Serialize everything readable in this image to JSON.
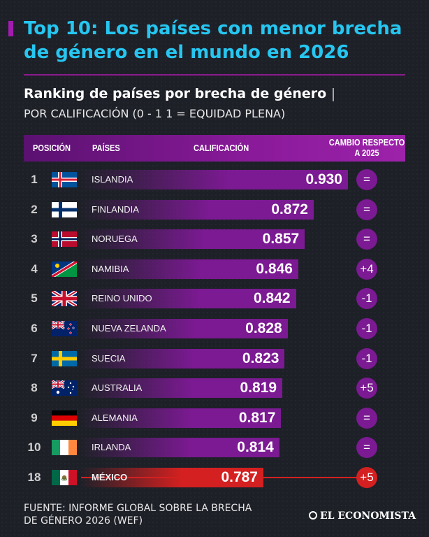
{
  "header": {
    "title": "Top 10: Los países con menor brecha de género en el mundo en 2026",
    "subtitle": "Ranking de países por brecha de género",
    "subtitle_sep": "|",
    "scale_note": "POR CALIFICACIÓN (0 - 1   1 = EQUIDAD PLENA)"
  },
  "columns": {
    "position": "POSICIÓN",
    "country": "PAÍSES",
    "score": "CALIFICACIÓN",
    "change": "CAMBIO RESPECTO A 2025"
  },
  "chart_data": {
    "type": "bar",
    "categories": [
      "ISLANDIA",
      "FINLANDIA",
      "NORUEGA",
      "NAMIBIA",
      "REINO UNIDO",
      "NUEVA ZELANDA",
      "SUECIA",
      "AUSTRALIA",
      "ALEMANIA",
      "IRLANDA",
      "MÉXICO"
    ],
    "ranks": [
      "1",
      "2",
      "3",
      "4",
      "5",
      "6",
      "7",
      "8",
      "9",
      "10",
      "18"
    ],
    "values": [
      0.93,
      0.872,
      0.857,
      0.846,
      0.842,
      0.828,
      0.823,
      0.819,
      0.817,
      0.814,
      0.787
    ],
    "value_labels": [
      "0.930",
      "0.872",
      "0.857",
      "0.846",
      "0.842",
      "0.828",
      "0.823",
      "0.819",
      "0.817",
      "0.814",
      "0.787"
    ],
    "change_vs_2025": [
      "=",
      "=",
      "=",
      "+4",
      "-1",
      "-1",
      "-1",
      "+5",
      "=",
      "=",
      "+5"
    ],
    "flags": [
      "iceland-flag",
      "finland-flag",
      "norway-flag",
      "namibia-flag",
      "uk-flag",
      "new-zealand-flag",
      "sweden-flag",
      "australia-flag",
      "germany-flag",
      "ireland-flag",
      "mexico-flag"
    ],
    "highlight": "MÉXICO",
    "bar_color": "#7b1a92",
    "highlight_color": "#d42020"
  },
  "footer": {
    "source": "FUENTE: INFORME GLOBAL SOBRE LA BRECHA DE GÉNERO 2026 (WEF)",
    "brand": "EL ECONOMISTA"
  }
}
